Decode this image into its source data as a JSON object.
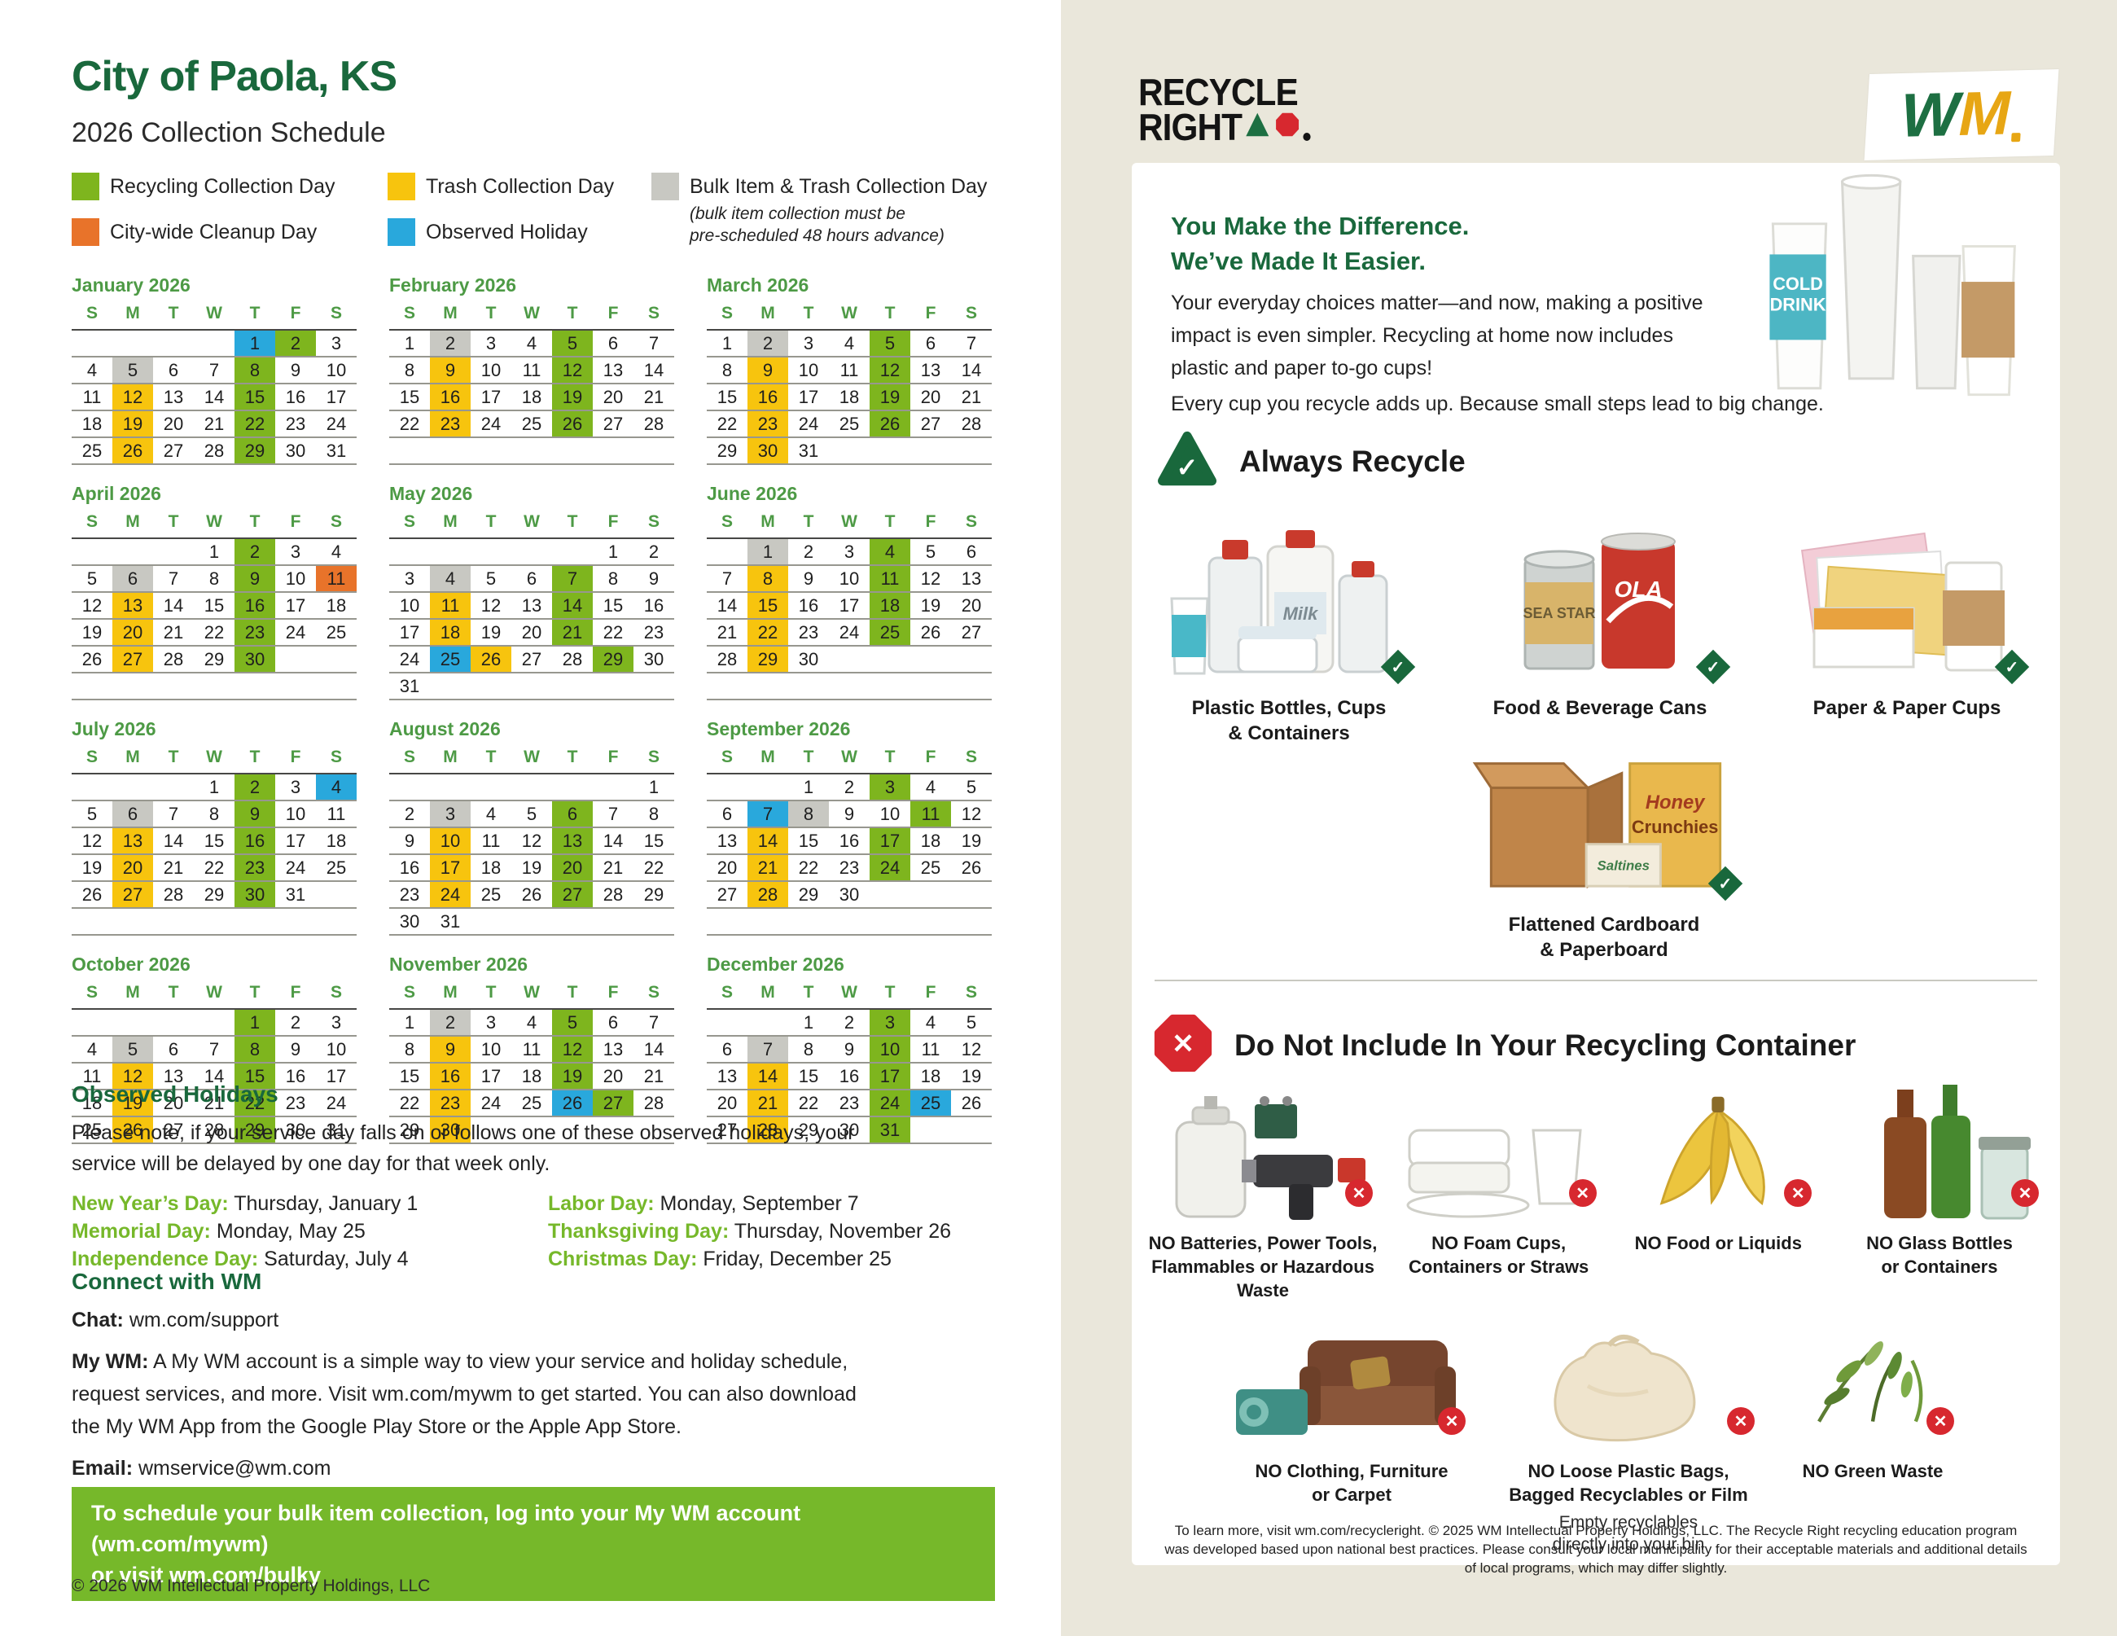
{
  "left": {
    "title": "City of Paola, KS",
    "subtitle": "2026 Collection Schedule",
    "legend": [
      {
        "label": "Recycling Collection Day",
        "color": "#7eb51e"
      },
      {
        "label": "Trash Collection Day",
        "color": "#f7c40e"
      },
      {
        "label": "Bulk Item & Trash Collection Day",
        "color": "#c8c8c2",
        "note": "(bulk item collection must be\npre-scheduled 48 hours advance)"
      },
      {
        "label": "City-wide Cleanup Day",
        "color": "#e8732a"
      },
      {
        "label": "Observed Holiday",
        "color": "#29a8dc"
      }
    ],
    "day_headers": [
      "S",
      "M",
      "T",
      "W",
      "T",
      "F",
      "S"
    ],
    "months": [
      {
        "name": "January 2026",
        "weeks": [
          [
            "",
            "",
            "",
            "",
            "1H",
            "2G",
            "3"
          ],
          [
            "4",
            "5B",
            "6",
            "7",
            "8G",
            "9",
            "10"
          ],
          [
            "11",
            "12Y",
            "13",
            "14",
            "15G",
            "16",
            "17"
          ],
          [
            "18",
            "19Y",
            "20",
            "21",
            "22G",
            "23",
            "24"
          ],
          [
            "25",
            "26Y",
            "27",
            "28",
            "29G",
            "30",
            "31"
          ]
        ]
      },
      {
        "name": "February 2026",
        "weeks": [
          [
            "1",
            "2B",
            "3",
            "4",
            "5G",
            "6",
            "7"
          ],
          [
            "8",
            "9Y",
            "10",
            "11",
            "12G",
            "13",
            "14"
          ],
          [
            "15",
            "16Y",
            "17",
            "18",
            "19G",
            "20",
            "21"
          ],
          [
            "22",
            "23Y",
            "24",
            "25",
            "26G",
            "27",
            "28"
          ]
        ]
      },
      {
        "name": "March 2026",
        "weeks": [
          [
            "1",
            "2B",
            "3",
            "4",
            "5G",
            "6",
            "7"
          ],
          [
            "8",
            "9Y",
            "10",
            "11",
            "12G",
            "13",
            "14"
          ],
          [
            "15",
            "16Y",
            "17",
            "18",
            "19G",
            "20",
            "21"
          ],
          [
            "22",
            "23Y",
            "24",
            "25",
            "26G",
            "27",
            "28"
          ],
          [
            "29",
            "30Y",
            "31"
          ]
        ]
      },
      {
        "name": "April 2026",
        "weeks": [
          [
            "",
            "",
            "",
            "1",
            "2G",
            "3",
            "4"
          ],
          [
            "5",
            "6B",
            "7",
            "8",
            "9G",
            "10",
            "11O"
          ],
          [
            "12",
            "13Y",
            "14",
            "15",
            "16G",
            "17",
            "18"
          ],
          [
            "19",
            "20Y",
            "21",
            "22",
            "23G",
            "24",
            "25"
          ],
          [
            "26",
            "27Y",
            "28",
            "29",
            "30G"
          ]
        ]
      },
      {
        "name": "May 2026",
        "weeks": [
          [
            "",
            "",
            "",
            "",
            "",
            "1",
            "2"
          ],
          [
            "3",
            "4B",
            "5",
            "6",
            "7G",
            "8",
            "9"
          ],
          [
            "10",
            "11Y",
            "12",
            "13",
            "14G",
            "15",
            "16"
          ],
          [
            "17",
            "18Y",
            "19",
            "20",
            "21G",
            "22",
            "23"
          ],
          [
            "24",
            "25H",
            "26Y",
            "27",
            "28",
            "29G",
            "30"
          ],
          [
            "31"
          ]
        ]
      },
      {
        "name": "June 2026",
        "weeks": [
          [
            "",
            "1B",
            "2",
            "3",
            "4G",
            "5",
            "6"
          ],
          [
            "7",
            "8Y",
            "9",
            "10",
            "11G",
            "12",
            "13"
          ],
          [
            "14",
            "15Y",
            "16",
            "17",
            "18G",
            "19",
            "20"
          ],
          [
            "21",
            "22Y",
            "23",
            "24",
            "25G",
            "26",
            "27"
          ],
          [
            "28",
            "29Y",
            "30"
          ]
        ]
      },
      {
        "name": "July 2026",
        "weeks": [
          [
            "",
            "",
            "",
            "1",
            "2G",
            "3",
            "4H"
          ],
          [
            "5",
            "6B",
            "7",
            "8",
            "9G",
            "10",
            "11"
          ],
          [
            "12",
            "13Y",
            "14",
            "15",
            "16G",
            "17",
            "18"
          ],
          [
            "19",
            "20Y",
            "21",
            "22",
            "23G",
            "24",
            "25"
          ],
          [
            "26",
            "27Y",
            "28",
            "29",
            "30G",
            "31"
          ]
        ]
      },
      {
        "name": "August 2026",
        "weeks": [
          [
            "",
            "",
            "",
            "",
            "",
            "",
            "1"
          ],
          [
            "2",
            "3B",
            "4",
            "5",
            "6G",
            "7",
            "8"
          ],
          [
            "9",
            "10Y",
            "11",
            "12",
            "13G",
            "14",
            "15"
          ],
          [
            "16",
            "17Y",
            "18",
            "19",
            "20G",
            "21",
            "22"
          ],
          [
            "23",
            "24Y",
            "25",
            "26",
            "27G",
            "28",
            "29"
          ],
          [
            "30",
            "31"
          ]
        ]
      },
      {
        "name": "September 2026",
        "weeks": [
          [
            "",
            "",
            "1",
            "2",
            "3G",
            "4",
            "5"
          ],
          [
            "6",
            "7H",
            "8B",
            "9",
            "10",
            "11G",
            "12"
          ],
          [
            "13",
            "14Y",
            "15",
            "16",
            "17G",
            "18",
            "19"
          ],
          [
            "20",
            "21Y",
            "22",
            "23",
            "24G",
            "25",
            "26"
          ],
          [
            "27",
            "28Y",
            "29",
            "30"
          ]
        ]
      },
      {
        "name": "October 2026",
        "weeks": [
          [
            "",
            "",
            "",
            "",
            "1G",
            "2",
            "3"
          ],
          [
            "4",
            "5B",
            "6",
            "7",
            "8G",
            "9",
            "10"
          ],
          [
            "11",
            "12Y",
            "13",
            "14",
            "15G",
            "16",
            "17"
          ],
          [
            "18",
            "19Y",
            "20",
            "21",
            "22G",
            "23",
            "24"
          ],
          [
            "25",
            "26Y",
            "27",
            "28",
            "29G",
            "30",
            "31"
          ]
        ]
      },
      {
        "name": "November 2026",
        "weeks": [
          [
            "1",
            "2B",
            "3",
            "4",
            "5G",
            "6",
            "7"
          ],
          [
            "8",
            "9Y",
            "10",
            "11",
            "12G",
            "13",
            "14"
          ],
          [
            "15",
            "16Y",
            "17",
            "18",
            "19G",
            "20",
            "21"
          ],
          [
            "22",
            "23Y",
            "24",
            "25",
            "26H",
            "27G",
            "28"
          ],
          [
            "29",
            "30Y"
          ]
        ]
      },
      {
        "name": "December 2026",
        "weeks": [
          [
            "",
            "",
            "1",
            "2",
            "3G",
            "4",
            "5"
          ],
          [
            "6",
            "7B",
            "8",
            "9",
            "10G",
            "11",
            "12"
          ],
          [
            "13",
            "14Y",
            "15",
            "16",
            "17G",
            "18",
            "19"
          ],
          [
            "20",
            "21Y",
            "22",
            "23",
            "24G",
            "25H",
            "26"
          ],
          [
            "27",
            "28Y",
            "29",
            "30",
            "31G"
          ]
        ]
      }
    ],
    "holidays": {
      "heading": "Observed Holidays",
      "intro": "Please note, if your service day falls on or follows one of these observed holidays, your\nservice will be delayed by one day for that week only.",
      "items": [
        {
          "label": "New Year’s Day:",
          "value": "Thursday, January 1"
        },
        {
          "label": "Labor Day:",
          "value": "Monday, September 7"
        },
        {
          "label": "Memorial Day:",
          "value": "Monday, May 25"
        },
        {
          "label": "Thanksgiving Day:",
          "value": "Thursday, November 26"
        },
        {
          "label": "Independence Day:",
          "value": "Saturday, July 4"
        },
        {
          "label": "Christmas Day:",
          "value": "Friday, December 25"
        }
      ]
    },
    "connect": {
      "heading": "Connect with WM",
      "chat_label": "Chat:",
      "chat_value": "wm.com/support",
      "mywm_label": "My WM:",
      "mywm_text": "A My WM account is a simple way to view your service and holiday schedule,\nrequest services, and more. Visit wm.com/mywm to get started. You can also download\nthe My WM App from the Google Play Store or the Apple App Store.",
      "email_label": "Email:",
      "email_value": "wmservice@wm.com"
    },
    "banner": "To schedule your bulk item collection, log into your My WM account (wm.com/mywm)\nor visit wm.com/bulky",
    "copyright": "© 2026 WM Intellectual Property Holdings, LLC"
  },
  "right": {
    "recycle_right_line1": "RECYCLE",
    "recycle_right_line2": "RIGHT",
    "wm_w": "W",
    "wm_m": "M",
    "headline1": "You Make the Difference.",
    "headline2": "We’ve Made It Easier.",
    "para1": "Your everyday choices matter—and now, making a positive\nimpact is even simpler. Recycling at home now includes\nplastic and paper to-go cups!",
    "para2": "Every cup you recycle adds up. Because small steps lead to big change.",
    "always": {
      "heading": "Always Recycle",
      "items": [
        {
          "icon": "plastic-bottles-icon",
          "label": "Plastic Bottles, Cups\n& Containers"
        },
        {
          "icon": "cans-icon",
          "label": "Food & Beverage Cans"
        },
        {
          "icon": "paper-icon",
          "label": "Paper & Paper Cups"
        },
        {
          "icon": "cardboard-icon",
          "label": "Flattened Cardboard\n& Paperboard"
        }
      ]
    },
    "donot": {
      "heading": "Do Not Include In Your Recycling Container",
      "row1": [
        {
          "icon": "batteries-icon",
          "label": "NO Batteries, Power Tools,\nFlammables or Hazardous\nWaste"
        },
        {
          "icon": "foam-icon",
          "label": "NO Foam Cups,\nContainers or Straws"
        },
        {
          "icon": "food-icon",
          "label": "NO Food or Liquids"
        },
        {
          "icon": "glass-icon",
          "label": "NO Glass Bottles\nor Containers"
        }
      ],
      "row2": [
        {
          "icon": "furniture-icon",
          "label": "NO Clothing, Furniture\nor Carpet"
        },
        {
          "icon": "bags-icon",
          "label": "NO Loose Plastic Bags,\nBagged Recyclables or Film",
          "sub": "Empty recyclables\ndirectly into your bin"
        },
        {
          "icon": "greenwaste-icon",
          "label": "NO Green Waste"
        }
      ]
    },
    "fineprint": "To learn more, visit wm.com/recycleright. © 2025 WM Intellectual Property Holdings, LLC. The Recycle Right recycling education program was developed based upon national best practices. Please consult your local municipality for their acceptable materials and additional details of local programs, which may differ slightly."
  },
  "colors": {
    "recycling_green": "#7eb51e",
    "trash_yellow": "#f7c40e",
    "bulk_gray": "#c8c8c2",
    "cleanup_orange": "#e8732a",
    "holiday_blue": "#29a8dc",
    "dark_green": "#19683c",
    "bright_green": "#76b82a",
    "cream": "#eae7db",
    "red": "#d7282f",
    "wm_gold": "#e7a614"
  }
}
